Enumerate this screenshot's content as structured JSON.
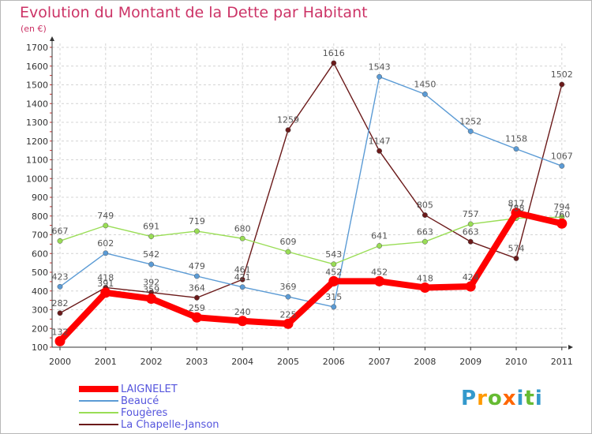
{
  "title": "Evolution du Montant de la Dette par Habitant",
  "unit_label": "(en €)",
  "logo": {
    "text": "Proxiti",
    "letters": [
      "P",
      "r",
      "o",
      "x",
      "i",
      "t",
      "i"
    ],
    "colors": [
      "#3399cc",
      "#ff9900",
      "#66bb33",
      "#ff6600",
      "#3399cc",
      "#66bb33",
      "#3399cc"
    ]
  },
  "chart_data": {
    "type": "line",
    "title": "Evolution du Montant de la Dette par Habitant",
    "ylabel": "(en €)",
    "xlabel": "",
    "x": [
      "2000",
      "2001",
      "2002",
      "2003",
      "2004",
      "2005",
      "2006",
      "2007",
      "2008",
      "2009",
      "2010",
      "2011"
    ],
    "ylim": [
      100,
      1700
    ],
    "yticks": [
      100,
      200,
      300,
      400,
      500,
      600,
      700,
      800,
      900,
      1000,
      1100,
      1200,
      1300,
      1400,
      1500,
      1600,
      1700
    ],
    "grid": "horizontal dashed",
    "legend_position": "bottom-left",
    "series": [
      {
        "name": "LAIGNELET",
        "color": "#ff0000",
        "values": [
          132,
          391,
          359,
          259,
          240,
          225,
          452,
          452,
          418,
          424,
          817,
          760
        ],
        "labels": [
          "132",
          "391",
          "359",
          "259",
          "240",
          "225",
          "452",
          "452",
          "418",
          "424",
          "817",
          "760"
        ]
      },
      {
        "name": "Beaucé",
        "color": "#5b9bd5",
        "values": [
          423,
          602,
          542,
          479,
          421,
          369,
          315,
          1543,
          1450,
          1252,
          1158,
          1067
        ],
        "labels": [
          "423",
          "602",
          "542",
          "479",
          "421",
          "369",
          "315",
          "1543",
          "1450",
          "1252",
          "1158",
          "1067"
        ]
      },
      {
        "name": "Fougères",
        "color": "#99dd55",
        "values": [
          667,
          749,
          691,
          719,
          680,
          609,
          543,
          641,
          663,
          757,
          788,
          794
        ],
        "labels": [
          "667",
          "749",
          "691",
          "719",
          "680",
          "609",
          "543",
          "641",
          "663",
          "757",
          "788",
          "794"
        ]
      },
      {
        "name": "La Chapelle-Janson",
        "color": "#6b1a1a",
        "values": [
          282,
          418,
          392,
          364,
          461,
          1259,
          1616,
          1147,
          805,
          663,
          574,
          1502
        ],
        "labels": [
          "282",
          "418",
          "392",
          "364",
          "461",
          "1259",
          "1616",
          "1147",
          "805",
          "663",
          "574",
          "1502"
        ]
      }
    ]
  }
}
